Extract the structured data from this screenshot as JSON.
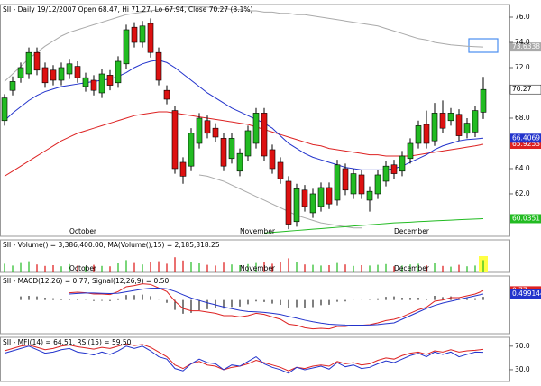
{
  "chart_data": [
    {
      "type": "candlestick",
      "title": "SII - Daily 19/12/2007 Open 68.47, Hi 71.27, Lo 67.94, Close 70.27 (3.1%)",
      "categories": [
        null,
        null,
        null,
        null,
        null,
        null,
        null,
        null,
        "October",
        null,
        null,
        null,
        null,
        null,
        null,
        null,
        null,
        null,
        null,
        null,
        null,
        null,
        null,
        null,
        null,
        null,
        null,
        null,
        null,
        "November",
        null,
        null,
        null,
        null,
        null,
        null,
        null,
        null,
        null,
        null,
        null,
        null,
        null,
        null,
        null,
        null,
        null,
        null,
        "December",
        null,
        null,
        null,
        null,
        null,
        null,
        null,
        null,
        null,
        null,
        null
      ],
      "candles": [
        [
          67.8,
          69.9,
          67.4,
          69.6
        ],
        [
          70.2,
          71.3,
          69.8,
          70.9
        ],
        [
          71.2,
          72.4,
          70.8,
          72.0
        ],
        [
          71.5,
          73.6,
          71.1,
          73.2
        ],
        [
          73.2,
          73.6,
          71.4,
          71.8
        ],
        [
          72.0,
          72.4,
          70.4,
          70.8
        ],
        [
          71.8,
          72.2,
          70.6,
          71.0
        ],
        [
          71.0,
          72.4,
          70.6,
          72.0
        ],
        [
          71.5,
          72.7,
          71.1,
          72.3
        ],
        [
          72.1,
          72.5,
          70.8,
          71.2
        ],
        [
          70.5,
          71.6,
          70.1,
          71.2
        ],
        [
          71.0,
          71.4,
          69.8,
          70.2
        ],
        [
          70.0,
          71.9,
          69.6,
          71.5
        ],
        [
          71.4,
          71.8,
          70.2,
          70.6
        ],
        [
          70.8,
          72.9,
          70.4,
          72.5
        ],
        [
          72.3,
          75.4,
          71.9,
          75.0
        ],
        [
          75.2,
          75.6,
          73.6,
          74.0
        ],
        [
          74.0,
          75.7,
          73.6,
          75.3
        ],
        [
          75.5,
          75.9,
          72.8,
          73.2
        ],
        [
          73.2,
          73.6,
          70.6,
          71.0
        ],
        [
          70.2,
          70.6,
          69.1,
          69.5
        ],
        [
          68.6,
          69.0,
          63.6,
          64.0
        ],
        [
          64.5,
          64.9,
          62.8,
          63.4
        ],
        [
          64.2,
          67.2,
          63.8,
          66.8
        ],
        [
          66.0,
          68.4,
          65.6,
          68.0
        ],
        [
          67.8,
          68.2,
          66.4,
          66.8
        ],
        [
          67.2,
          67.6,
          66.1,
          66.5
        ],
        [
          66.4,
          66.8,
          63.8,
          64.2
        ],
        [
          64.8,
          66.8,
          64.4,
          66.4
        ],
        [
          63.8,
          65.6,
          63.4,
          65.2
        ],
        [
          65.0,
          67.4,
          64.6,
          67.0
        ],
        [
          66.0,
          68.8,
          65.6,
          68.4
        ],
        [
          68.4,
          68.8,
          64.6,
          65.0
        ],
        [
          65.5,
          65.9,
          63.6,
          64.0
        ],
        [
          64.5,
          64.9,
          62.8,
          63.2
        ],
        [
          63.0,
          63.4,
          59.2,
          59.6
        ],
        [
          59.8,
          62.8,
          59.4,
          62.4
        ],
        [
          62.3,
          62.7,
          60.6,
          61.0
        ],
        [
          60.5,
          62.4,
          60.1,
          62.0
        ],
        [
          61.0,
          62.9,
          60.6,
          62.5
        ],
        [
          62.5,
          62.9,
          60.8,
          61.2
        ],
        [
          61.5,
          64.7,
          61.1,
          64.3
        ],
        [
          64.0,
          64.4,
          61.9,
          62.3
        ],
        [
          62.0,
          64.0,
          61.6,
          63.6
        ],
        [
          63.5,
          63.9,
          61.6,
          62.0
        ],
        [
          61.5,
          62.6,
          60.6,
          62.2
        ],
        [
          62.0,
          63.9,
          61.6,
          63.5
        ],
        [
          63.0,
          64.6,
          62.6,
          64.2
        ],
        [
          64.3,
          64.7,
          63.2,
          63.6
        ],
        [
          63.8,
          65.4,
          63.4,
          65.0
        ],
        [
          64.8,
          66.4,
          64.4,
          66.0
        ],
        [
          66.0,
          67.8,
          65.6,
          67.4
        ],
        [
          67.5,
          68.6,
          65.6,
          66.0
        ],
        [
          66.2,
          69.2,
          65.8,
          68.4
        ],
        [
          68.4,
          69.4,
          66.8,
          67.2
        ],
        [
          67.8,
          68.8,
          67.4,
          68.4
        ],
        [
          68.3,
          68.7,
          66.2,
          66.6
        ],
        [
          66.8,
          68.0,
          66.4,
          67.6
        ],
        [
          66.9,
          69.0,
          66.5,
          68.6
        ],
        [
          68.47,
          71.27,
          67.94,
          70.27
        ]
      ],
      "close_label": "70.27",
      "up_color": "#22bb22",
      "down_color": "#dd1111",
      "ylim": [
        58.64,
        77
      ],
      "yticks": [
        {
          "value": 76,
          "label": "76.0"
        },
        {
          "value": 74,
          "label": "74.0"
        },
        {
          "value": 72,
          "label": "72.0"
        },
        {
          "value": 68,
          "label": "68.0"
        },
        {
          "value": 64,
          "label": "64.0"
        },
        {
          "value": 62,
          "label": "62.0"
        }
      ],
      "series": [
        {
          "color": "#aaaaaa",
          "values": [
            70.9,
            71.5,
            72.1,
            72.7,
            73.2,
            73.7,
            74.1,
            74.5,
            74.8,
            75.0,
            75.2,
            75.4,
            75.6,
            75.8,
            76.0,
            76.2,
            76.3,
            76.4,
            76.5,
            76.6,
            76.6,
            76.7,
            76.8,
            76.8,
            76.8,
            76.8,
            76.7,
            76.7,
            76.6,
            76.6,
            76.5,
            76.5,
            76.4,
            76.4,
            76.3,
            76.3,
            76.2,
            76.2,
            76.1,
            76.0,
            75.9,
            75.8,
            75.7,
            75.6,
            75.5,
            75.4,
            75.3,
            75.1,
            74.9,
            74.7,
            74.5,
            74.3,
            74.2,
            74.0,
            73.9,
            73.8,
            73.75,
            73.7,
            73.66,
            73.6338
          ],
          "end_label": "73.6338"
        },
        {
          "color": "#aaaaaa",
          "values": [
            null,
            null,
            null,
            null,
            null,
            null,
            null,
            null,
            null,
            null,
            null,
            null,
            null,
            null,
            null,
            null,
            null,
            null,
            null,
            null,
            null,
            null,
            null,
            null,
            63.5,
            63.4,
            63.2,
            63.0,
            62.7,
            62.4,
            62.1,
            61.8,
            61.5,
            61.2,
            60.9,
            60.6,
            60.3,
            60.1,
            59.9,
            59.7,
            59.6,
            59.5,
            59.4,
            59.3,
            59.3,
            null,
            null,
            null,
            null,
            null,
            null,
            null,
            null,
            null,
            null,
            null,
            null,
            null,
            null,
            null
          ]
        },
        {
          "color": "#dd2222",
          "values": [
            63.4,
            63.8,
            64.2,
            64.6,
            65.0,
            65.4,
            65.8,
            66.2,
            66.5,
            66.8,
            67.0,
            67.2,
            67.4,
            67.6,
            67.8,
            68.0,
            68.2,
            68.3,
            68.4,
            68.5,
            68.5,
            68.4,
            68.3,
            68.2,
            68.1,
            68.0,
            67.9,
            67.8,
            67.7,
            67.6,
            67.5,
            67.3,
            67.1,
            66.9,
            66.7,
            66.5,
            66.3,
            66.1,
            65.9,
            65.8,
            65.6,
            65.5,
            65.4,
            65.3,
            65.2,
            65.1,
            65.1,
            65.0,
            65.0,
            65.0,
            65.0,
            65.1,
            65.2,
            65.3,
            65.4,
            65.5,
            65.6,
            65.7,
            65.8,
            65.9253
          ],
          "end_label": "65.9253"
        },
        {
          "color": "#2233cc",
          "values": [
            67.8,
            68.4,
            68.9,
            69.4,
            69.8,
            70.1,
            70.3,
            70.5,
            70.6,
            70.7,
            70.8,
            70.9,
            71.0,
            71.1,
            71.3,
            71.6,
            72.0,
            72.3,
            72.5,
            72.6,
            72.4,
            72.0,
            71.5,
            71.0,
            70.5,
            70.0,
            69.6,
            69.2,
            68.8,
            68.5,
            68.2,
            67.9,
            67.6,
            67.2,
            66.6,
            66.0,
            65.6,
            65.2,
            64.9,
            64.7,
            64.5,
            64.3,
            64.1,
            64.0,
            63.9,
            63.9,
            63.9,
            63.9,
            64.0,
            64.2,
            64.5,
            64.8,
            65.1,
            65.5,
            65.8,
            66.0,
            66.2,
            66.3,
            66.35,
            66.4069
          ],
          "end_label": "66.4069"
        },
        {
          "color": "#22bb22",
          "values": [
            null,
            null,
            null,
            null,
            null,
            null,
            null,
            null,
            null,
            null,
            null,
            null,
            null,
            null,
            null,
            null,
            null,
            null,
            null,
            null,
            null,
            null,
            null,
            null,
            null,
            null,
            null,
            null,
            null,
            null,
            null,
            null,
            58.9,
            58.95,
            59.0,
            59.05,
            59.1,
            59.15,
            59.2,
            59.25,
            59.3,
            59.35,
            59.4,
            59.45,
            59.5,
            59.55,
            59.6,
            59.65,
            59.7,
            59.73,
            59.76,
            59.8,
            59.83,
            59.86,
            59.89,
            59.92,
            59.95,
            59.98,
            60.01,
            60.0351
          ],
          "end_label": "60.0351"
        }
      ]
    },
    {
      "type": "bar",
      "title": "SII - Volume() = 3,386,400.00, MA(Volume(),15) = 2,185,318.25",
      "values": [
        2400000,
        1900000,
        2600000,
        3100000,
        2200000,
        1800000,
        2000000,
        1700000,
        2300000,
        1900000,
        1600000,
        2100000,
        1800000,
        1700000,
        2500000,
        3400000,
        2600000,
        2200000,
        2900000,
        3100000,
        2400000,
        4200000,
        3300000,
        2800000,
        2500000,
        2100000,
        1900000,
        2700000,
        2200000,
        2000000,
        2300000,
        2600000,
        2900000,
        2400000,
        2800000,
        3900000,
        3000000,
        2200000,
        2100000,
        1900000,
        2000000,
        2600000,
        2200000,
        1800000,
        2000000,
        1900000,
        2100000,
        2300000,
        1700000,
        1900000,
        2200000,
        2400000,
        2000000,
        2500000,
        1800000,
        1600000,
        2100000,
        1700000,
        1900000,
        3386400
      ],
      "up_color": "#22bb22",
      "down_color": "#dd1111",
      "highlight_color": "#ffff44",
      "ylim": [
        0,
        9000000
      ]
    },
    {
      "type": "line",
      "title": "SII - MACD(12,26) = 0.77, Signal(12,26,9) = 0.50",
      "ylim": [
        -2.8,
        2.0
      ],
      "histogram": [
        null,
        null,
        0.3,
        0.35,
        0.3,
        0.2,
        0.15,
        0.1,
        0.1,
        0.1,
        0.02,
        -0.08,
        -0.06,
        -0.09,
        0.13,
        0.42,
        0.41,
        0.45,
        0.32,
        0.01,
        -0.23,
        -0.82,
        -1.14,
        -1.07,
        -0.86,
        -0.77,
        -0.7,
        -0.72,
        -0.58,
        -0.54,
        -0.35,
        -0.12,
        -0.17,
        -0.3,
        -0.4,
        -0.64,
        -0.59,
        -0.63,
        -0.59,
        -0.43,
        -0.39,
        -0.15,
        -0.12,
        -0.01,
        -0.01,
        0.03,
        0.14,
        0.27,
        0.3,
        0.2,
        0.2,
        0.2,
        0.1,
        0.35,
        0.25,
        0.3,
        0.15,
        0.15,
        0.15,
        0.27
      ],
      "histogram_color": "#000000",
      "series": [
        {
          "color": "#dd2222",
          "values": [
            null,
            null,
            null,
            null,
            null,
            null,
            null,
            null,
            0.6,
            0.65,
            0.6,
            0.5,
            0.5,
            0.45,
            0.7,
            1.1,
            1.2,
            1.35,
            1.3,
            1.0,
            0.7,
            -0.1,
            -0.7,
            -0.9,
            -0.9,
            -1.0,
            -1.1,
            -1.3,
            -1.3,
            -1.4,
            -1.3,
            -1.1,
            -1.2,
            -1.4,
            -1.6,
            -2.0,
            -2.1,
            -2.3,
            -2.4,
            -2.35,
            -2.4,
            -2.2,
            -2.2,
            -2.1,
            -2.1,
            -2.05,
            -1.9,
            -1.7,
            -1.6,
            -1.4,
            -1.1,
            -0.8,
            -0.6,
            -0.1,
            0.0,
            0.2,
            0.2,
            0.35,
            0.5,
            0.77
          ],
          "end_label": "0.77"
        },
        {
          "color": "#2233cc",
          "values": [
            null,
            null,
            null,
            null,
            null,
            null,
            null,
            null,
            0.5,
            0.55,
            0.58,
            0.58,
            0.56,
            0.54,
            0.57,
            0.68,
            0.79,
            0.9,
            0.98,
            0.99,
            0.93,
            0.72,
            0.44,
            0.17,
            -0.04,
            -0.23,
            -0.4,
            -0.58,
            -0.72,
            -0.86,
            -0.95,
            -0.98,
            -1.03,
            -1.1,
            -1.2,
            -1.36,
            -1.51,
            -1.67,
            -1.81,
            -1.92,
            -2.01,
            -2.05,
            -2.08,
            -2.09,
            -2.09,
            -2.08,
            -2.04,
            -1.97,
            -1.9,
            -1.6,
            -1.3,
            -1.0,
            -0.7,
            -0.45,
            -0.25,
            -0.1,
            0.05,
            0.2,
            0.35,
            0.499144
          ],
          "end_label": "0.499144"
        }
      ]
    },
    {
      "type": "line",
      "title": "SII - MFI(14) = 64.51, RSI(15) = 59.50",
      "ylim": [
        10,
        85
      ],
      "yticks": [
        {
          "value": 70,
          "label": "70.0"
        },
        {
          "value": 30,
          "label": "30.0"
        }
      ],
      "series": [
        {
          "color": "#dd2222",
          "values": [
            62,
            66,
            70,
            72,
            68,
            64,
            66,
            70,
            72,
            69,
            67,
            65,
            68,
            66,
            70,
            74,
            71,
            73,
            68,
            60,
            52,
            38,
            32,
            40,
            44,
            38,
            36,
            30,
            34,
            36,
            40,
            46,
            42,
            38,
            34,
            28,
            34,
            32,
            36,
            38,
            36,
            44,
            40,
            42,
            38,
            40,
            46,
            50,
            48,
            54,
            58,
            60,
            56,
            62,
            60,
            64,
            60,
            62,
            63,
            64.51
          ]
        },
        {
          "color": "#2233cc",
          "values": [
            58,
            62,
            66,
            70,
            64,
            58,
            60,
            64,
            66,
            60,
            58,
            55,
            60,
            56,
            62,
            70,
            66,
            70,
            62,
            52,
            48,
            32,
            28,
            40,
            48,
            42,
            40,
            30,
            38,
            36,
            44,
            52,
            40,
            34,
            30,
            24,
            34,
            30,
            33,
            36,
            31,
            42,
            35,
            38,
            32,
            34,
            40,
            45,
            42,
            48,
            54,
            58,
            52,
            60,
            56,
            60,
            52,
            56,
            60,
            59.5
          ]
        }
      ]
    }
  ]
}
